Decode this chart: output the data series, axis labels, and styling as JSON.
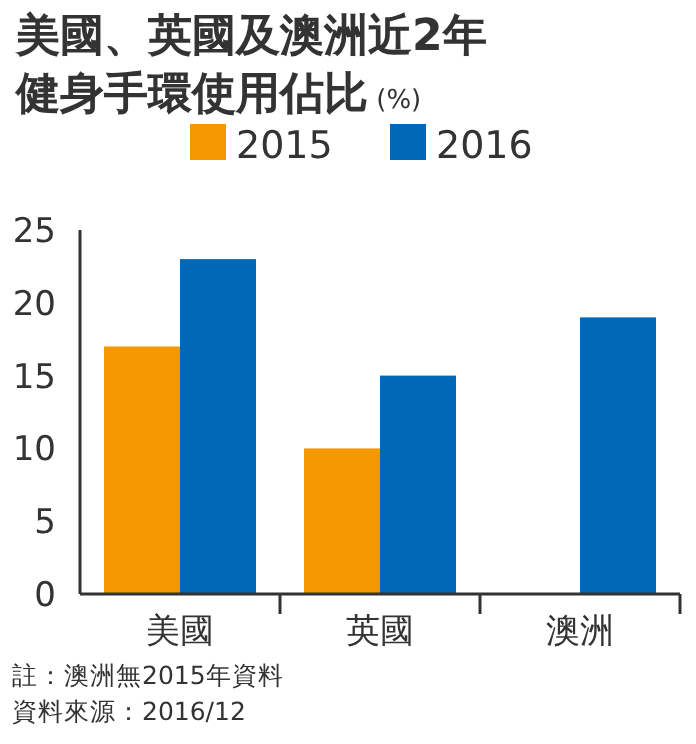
{
  "chart_data": {
    "type": "bar",
    "title": "美國、英國及澳洲近2年健身手環使用佔比",
    "ylabel": "(%)",
    "categories": [
      "美國",
      "英國",
      "澳洲"
    ],
    "series": [
      {
        "name": "2015",
        "color": "#f39800",
        "values": [
          17,
          10,
          null
        ]
      },
      {
        "name": "2016",
        "color": "#0068b7",
        "values": [
          23,
          15,
          19
        ]
      }
    ],
    "ylim": [
      0,
      25
    ],
    "yticks": [
      0,
      5,
      10,
      15,
      20,
      25
    ],
    "legend": "top",
    "annotations": [
      "註：澳洲無2015年資料",
      "資料來源：2016/12"
    ]
  }
}
